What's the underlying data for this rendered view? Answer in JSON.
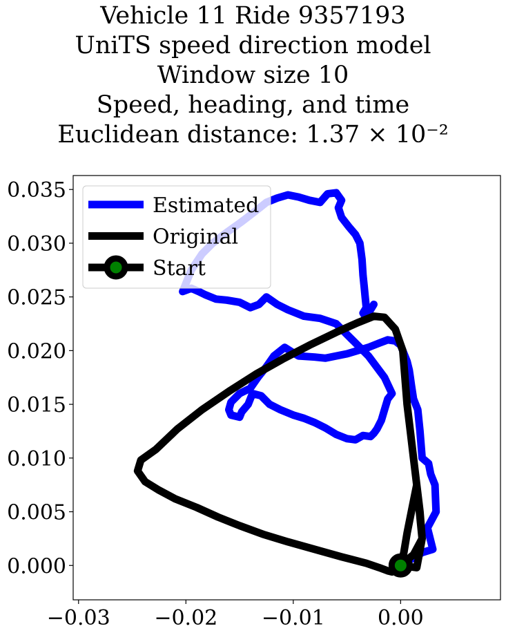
{
  "title_lines": [
    "Vehicle 11 Ride 9357193",
    "UniTS speed direction model",
    "Window size 10",
    "Speed, heading, and time",
    "Euclidean distance: 1.37 × 10⁻²"
  ],
  "chart_data": {
    "type": "line",
    "title": "Vehicle 11 Ride 9357193\nUniTS speed direction model\nWindow size 10\nSpeed, heading, and time\nEuclidean distance: 1.37 × 10⁻²",
    "xlabel": "",
    "ylabel": "",
    "xlim": [
      -0.0305,
      0.0093
    ],
    "ylim": [
      -0.0032,
      0.0363
    ],
    "xticks": [
      -0.03,
      -0.02,
      -0.01,
      0.0
    ],
    "xtick_labels": [
      "−0.03",
      "−0.02",
      "−0.01",
      "0.00"
    ],
    "yticks": [
      0.0,
      0.005,
      0.01,
      0.015,
      0.02,
      0.025,
      0.03,
      0.035
    ],
    "ytick_labels": [
      "0.000",
      "0.005",
      "0.010",
      "0.015",
      "0.020",
      "0.025",
      "0.030",
      "0.035"
    ],
    "grid": false,
    "legend_position": "upper-left",
    "series": [
      {
        "name": "Estimated",
        "color": "#0000ff",
        "x": [
          0.0,
          0.002,
          0.003,
          0.0025,
          0.0033,
          0.0032,
          0.0028,
          0.0026,
          0.002,
          0.0018,
          0.0016,
          0.0012,
          0.001,
          0.0009,
          0.0008,
          0.0006,
          0.0004,
          0.0002,
          0.0,
          -0.0005,
          -0.0012,
          -0.002,
          -0.003,
          -0.004,
          -0.005,
          -0.006,
          -0.007,
          -0.008,
          -0.0095,
          -0.01,
          -0.0108,
          -0.0118,
          -0.0125,
          -0.0133,
          -0.014,
          -0.015,
          -0.0158,
          -0.016,
          -0.0158,
          -0.015,
          -0.0148,
          -0.0142,
          -0.0138,
          -0.013,
          -0.0122,
          -0.0112,
          -0.01,
          -0.009,
          -0.008,
          -0.007,
          -0.006,
          -0.005,
          -0.0042,
          -0.0035,
          -0.0028,
          -0.0025,
          -0.0022,
          -0.0018,
          -0.0015,
          -0.0012,
          -0.0008,
          -0.0015,
          -0.003,
          -0.0045,
          -0.006,
          -0.0075,
          -0.009,
          -0.0105,
          -0.0115,
          -0.0125,
          -0.0132,
          -0.014,
          -0.015,
          -0.0162,
          -0.0172,
          -0.0182,
          -0.0188,
          -0.0195,
          -0.0203,
          -0.0195,
          -0.0185,
          -0.0175,
          -0.0162,
          -0.0148,
          -0.0135,
          -0.0125,
          -0.0115,
          -0.0105,
          -0.0095,
          -0.0085,
          -0.0075,
          -0.0068,
          -0.006,
          -0.0055,
          -0.0058,
          -0.0055,
          -0.0048,
          -0.0042,
          -0.0038,
          -0.0036,
          -0.0035,
          -0.0034,
          -0.0033,
          -0.0032,
          -0.0035,
          -0.0033,
          -0.0028,
          -0.0025
        ],
        "y": [
          0.0,
          0.0012,
          0.0015,
          0.0035,
          0.005,
          0.0075,
          0.0085,
          0.0095,
          0.01,
          0.0125,
          0.0145,
          0.0155,
          0.0168,
          0.0175,
          0.0182,
          0.019,
          0.0195,
          0.02,
          0.0205,
          0.0209,
          0.021,
          0.0207,
          0.0203,
          0.02,
          0.0197,
          0.0195,
          0.0193,
          0.0194,
          0.0195,
          0.0198,
          0.0203,
          0.0195,
          0.0185,
          0.0175,
          0.0165,
          0.016,
          0.0152,
          0.0145,
          0.014,
          0.0138,
          0.0143,
          0.015,
          0.016,
          0.0158,
          0.015,
          0.0145,
          0.014,
          0.0137,
          0.0133,
          0.0128,
          0.0122,
          0.0118,
          0.0117,
          0.0121,
          0.012,
          0.0123,
          0.0127,
          0.0135,
          0.0145,
          0.0155,
          0.016,
          0.0175,
          0.0195,
          0.021,
          0.0225,
          0.023,
          0.0232,
          0.0238,
          0.0243,
          0.025,
          0.0243,
          0.024,
          0.0245,
          0.0247,
          0.0248,
          0.0252,
          0.0255,
          0.0258,
          0.0255,
          0.0275,
          0.029,
          0.03,
          0.031,
          0.032,
          0.033,
          0.0338,
          0.0342,
          0.0345,
          0.0343,
          0.034,
          0.0338,
          0.0346,
          0.0347,
          0.034,
          0.0333,
          0.0324,
          0.0315,
          0.0308,
          0.03,
          0.0285,
          0.027,
          0.026,
          0.025,
          0.024,
          0.0235,
          0.0232,
          0.0238,
          0.0243
        ]
      },
      {
        "name": "Original",
        "color": "#000000",
        "x": [
          0.0,
          0.0015,
          0.002,
          0.0018,
          0.0015,
          0.0012,
          0.0009,
          0.0006,
          0.0004,
          0.0002,
          -0.0005,
          -0.0015,
          -0.0025,
          -0.004,
          -0.006,
          -0.0085,
          -0.011,
          -0.0135,
          -0.016,
          -0.0185,
          -0.0208,
          -0.0228,
          -0.0242,
          -0.0245,
          -0.0238,
          -0.0225,
          -0.021,
          -0.019,
          -0.017,
          -0.015,
          -0.0128,
          -0.0105,
          -0.008,
          -0.0055,
          -0.0032,
          -0.002,
          -0.0012,
          -0.0008,
          -0.0005,
          -0.0002,
          0.0,
          0.0003,
          0.0006,
          0.001,
          0.0015,
          0.002,
          0.0012,
          0.0002,
          0.0
        ],
        "y": [
          0.0,
          -0.0002,
          0.0025,
          0.005,
          0.0075,
          0.01,
          0.0125,
          0.015,
          0.0175,
          0.02,
          0.022,
          0.0231,
          0.0232,
          0.0226,
          0.0217,
          0.0205,
          0.0192,
          0.0178,
          0.0162,
          0.0145,
          0.0127,
          0.0108,
          0.0098,
          0.0088,
          0.0078,
          0.007,
          0.0062,
          0.0054,
          0.0045,
          0.0037,
          0.0029,
          0.0022,
          0.0015,
          0.0008,
          0.0002,
          -0.0002,
          -0.0005,
          -0.0006,
          -0.0005,
          -0.0003,
          0.0,
          0.0012,
          0.003,
          0.005,
          0.0075,
          0.0025,
          0.001,
          0.0002,
          0.0
        ]
      }
    ],
    "start_point": {
      "name": "Start",
      "x": 0.0,
      "y": 0.0,
      "marker_face": "#008000",
      "marker_edge": "#000000"
    },
    "legend": [
      {
        "label": "Estimated",
        "color": "#0000ff",
        "marker": false
      },
      {
        "label": "Original",
        "color": "#000000",
        "marker": false
      },
      {
        "label": "Start",
        "color": "#000000",
        "marker": true,
        "marker_face": "#008000"
      }
    ]
  }
}
